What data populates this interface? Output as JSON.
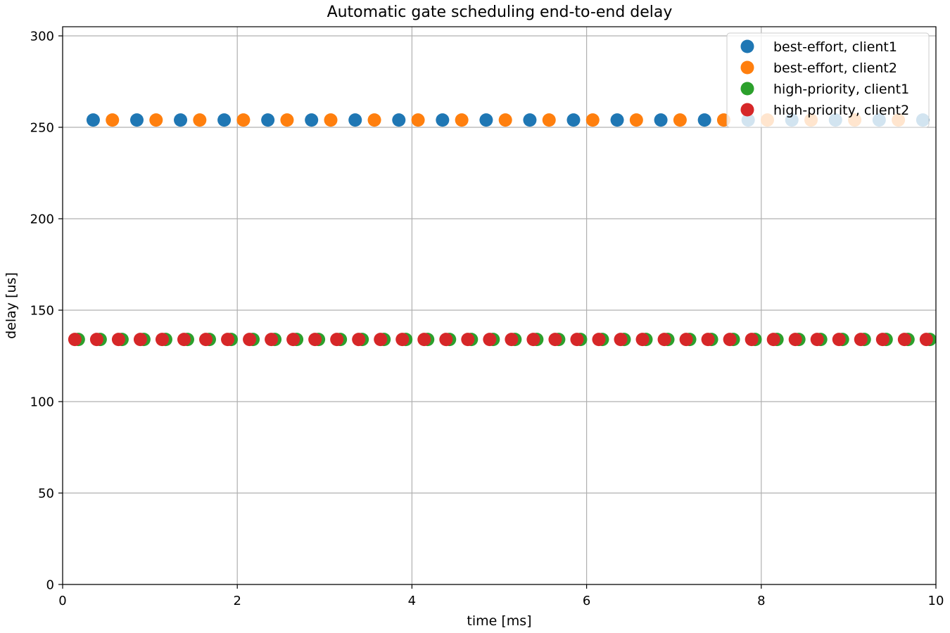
{
  "chart_data": {
    "type": "scatter",
    "title": "Automatic gate scheduling end-to-end delay",
    "xlabel": "time [ms]",
    "ylabel": "delay [us]",
    "xlim": [
      0,
      10
    ],
    "ylim": [
      0,
      305
    ],
    "xticks": [
      0,
      2,
      4,
      6,
      8,
      10
    ],
    "xtick_labels": [
      "0",
      "2",
      "4",
      "6",
      "8",
      "10"
    ],
    "yticks": [
      0,
      50,
      100,
      150,
      200,
      250,
      300
    ],
    "ytick_labels": [
      "0",
      "50",
      "100",
      "150",
      "200",
      "250",
      "300"
    ],
    "grid": true,
    "legend_position": "top-right",
    "series": [
      {
        "name": "best-effort, client1",
        "color": "#1f77b4",
        "y": 254,
        "x": [
          0.35,
          0.85,
          1.35,
          1.85,
          2.35,
          2.85,
          3.35,
          3.85,
          4.35,
          4.85,
          5.35,
          5.85,
          6.35,
          6.85,
          7.35,
          7.85,
          8.35,
          8.85,
          9.35,
          9.85
        ]
      },
      {
        "name": "best-effort, client2",
        "color": "#ff7f0e",
        "y": 254,
        "x": [
          0.57,
          1.07,
          1.57,
          2.07,
          2.57,
          3.07,
          3.57,
          4.07,
          4.57,
          5.07,
          5.57,
          6.07,
          6.57,
          7.07,
          7.57,
          8.07,
          8.57,
          9.07,
          9.57
        ]
      },
      {
        "name": "high-priority, client1",
        "color": "#2ca02c",
        "y": 134,
        "x": [
          0.18,
          0.43,
          0.68,
          0.93,
          1.18,
          1.43,
          1.68,
          1.93,
          2.18,
          2.43,
          2.68,
          2.93,
          3.18,
          3.43,
          3.68,
          3.93,
          4.18,
          4.43,
          4.68,
          4.93,
          5.18,
          5.43,
          5.68,
          5.93,
          6.18,
          6.43,
          6.68,
          6.93,
          7.18,
          7.43,
          7.68,
          7.93,
          8.18,
          8.43,
          8.68,
          8.93,
          9.18,
          9.43,
          9.68,
          9.93
        ]
      },
      {
        "name": "high-priority, client2",
        "color": "#d62728",
        "y": 134,
        "x": [
          0.14,
          0.39,
          0.64,
          0.89,
          1.14,
          1.39,
          1.64,
          1.89,
          2.14,
          2.39,
          2.64,
          2.89,
          3.14,
          3.39,
          3.64,
          3.89,
          4.14,
          4.39,
          4.64,
          4.89,
          5.14,
          5.39,
          5.64,
          5.89,
          6.14,
          6.39,
          6.64,
          6.89,
          7.14,
          7.39,
          7.64,
          7.89,
          8.14,
          8.39,
          8.64,
          8.89,
          9.14,
          9.39,
          9.64,
          9.89
        ]
      }
    ]
  }
}
